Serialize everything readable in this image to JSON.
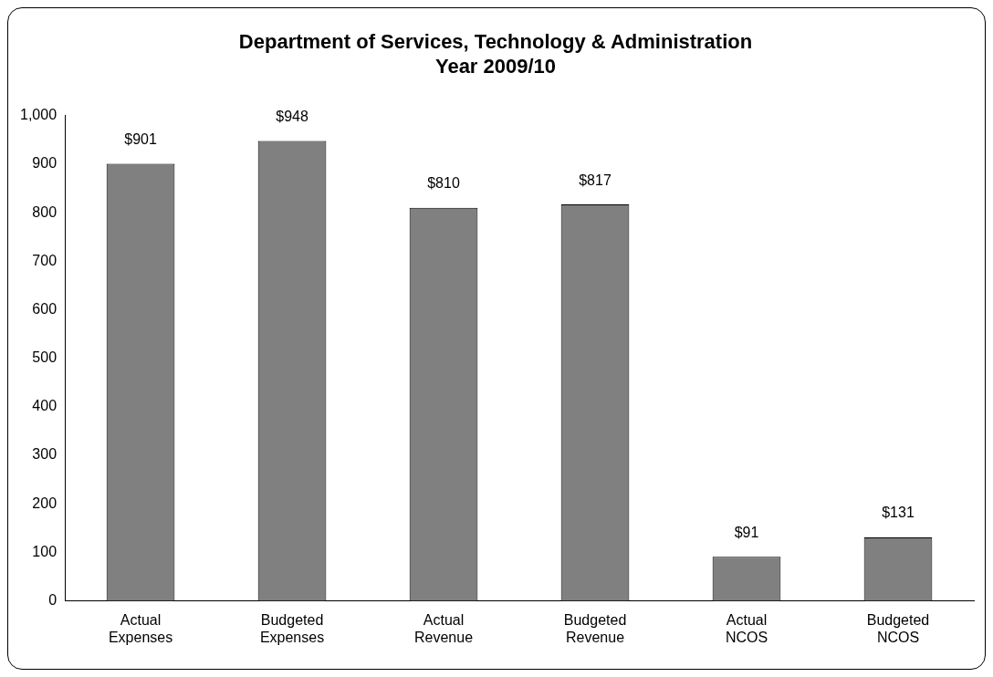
{
  "chart_data": {
    "type": "bar",
    "title": "Department of Services, Technology & Administration\nYear 2009/10",
    "categories": [
      "Actual Expenses",
      "Budgeted Expenses",
      "Actual Revenue",
      "Budgeted Revenue",
      "Actual NCOS",
      "Budgeted NCOS"
    ],
    "values": [
      901,
      948,
      810,
      817,
      91,
      131
    ],
    "value_labels": [
      "$901",
      "$948",
      "$810",
      "$817",
      "$91",
      "$131"
    ],
    "color": "#808080",
    "ylim": [
      0,
      1000
    ],
    "yticks": [
      0,
      100,
      200,
      300,
      400,
      500,
      600,
      700,
      800,
      900,
      {
        "value": 1000,
        "label": "1,000"
      }
    ],
    "grid": false,
    "legend": false
  }
}
